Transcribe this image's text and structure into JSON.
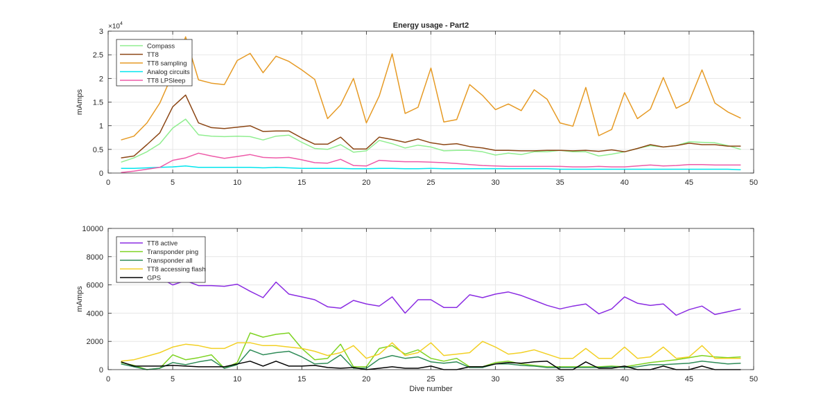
{
  "chart_data": [
    {
      "type": "line",
      "title": "Energy usage - Part2",
      "xlabel": "",
      "ylabel": "mAmps",
      "y_exponent_label": "×10",
      "y_exponent_power": "4",
      "xlim": [
        0,
        50
      ],
      "ylim": [
        0,
        30000
      ],
      "x_ticks": [
        0,
        5,
        10,
        15,
        20,
        25,
        30,
        35,
        40,
        45,
        50
      ],
      "x_tick_labels": [
        "0",
        "5",
        "10",
        "15",
        "20",
        "25",
        "30",
        "35",
        "40",
        "45",
        "50"
      ],
      "y_ticks": [
        0,
        5000,
        10000,
        15000,
        20000,
        25000,
        30000
      ],
      "y_tick_labels": [
        "0",
        "0.5",
        "1",
        "1.5",
        "2",
        "2.5",
        "3"
      ],
      "grid": true,
      "legend_position": "top-left",
      "x": [
        1,
        2,
        3,
        4,
        5,
        6,
        7,
        8,
        9,
        10,
        11,
        12,
        13,
        14,
        15,
        16,
        17,
        18,
        19,
        20,
        21,
        22,
        23,
        24,
        25,
        26,
        27,
        28,
        29,
        30,
        31,
        32,
        33,
        34,
        35,
        36,
        37,
        38,
        39,
        40,
        41,
        42,
        43,
        44,
        45,
        46,
        47,
        48,
        49
      ],
      "series": [
        {
          "name": "Compass",
          "color": "#90ee90",
          "values": [
            2300,
            3200,
            4500,
            6200,
            9500,
            11400,
            8100,
            7800,
            7700,
            7800,
            7700,
            7000,
            7800,
            8000,
            6500,
            5200,
            5000,
            6000,
            4400,
            4700,
            6900,
            6200,
            5300,
            5900,
            5500,
            4700,
            4800,
            4800,
            4500,
            3800,
            4200,
            3900,
            4500,
            4500,
            4800,
            4500,
            4500,
            3600,
            4000,
            4500,
            5200,
            5800,
            5500,
            5800,
            6600,
            6500,
            6400,
            5800,
            5000
          ]
        },
        {
          "name": "TT8",
          "color": "#8b4513",
          "values": [
            3200,
            3600,
            6000,
            8500,
            14000,
            16500,
            10600,
            9600,
            9400,
            9700,
            10000,
            8800,
            8900,
            8900,
            7400,
            6100,
            6100,
            7600,
            5100,
            5100,
            7600,
            7100,
            6500,
            7200,
            6400,
            6000,
            6200,
            5600,
            5300,
            4800,
            4800,
            4700,
            4700,
            4800,
            4800,
            4700,
            4800,
            4600,
            4900,
            4500,
            5200,
            6000,
            5500,
            5800,
            6300,
            6000,
            6000,
            5700,
            5700
          ]
        },
        {
          "name": "TT8 sampling",
          "color": "#e69a24",
          "values": [
            7000,
            7800,
            10600,
            14800,
            21000,
            28800,
            19700,
            19000,
            18700,
            23800,
            25300,
            21200,
            24700,
            23600,
            21800,
            19800,
            11500,
            14400,
            20000,
            10600,
            16300,
            25200,
            12600,
            13900,
            22200,
            10800,
            11300,
            18700,
            16400,
            13400,
            14600,
            13200,
            17600,
            15600,
            10600,
            9900,
            18100,
            7900,
            9200,
            17000,
            11500,
            13500,
            20200,
            13700,
            15100,
            21800,
            14800,
            12900,
            11600
          ]
        },
        {
          "name": "Analog circuits",
          "color": "#00e5ee",
          "values": [
            1000,
            1000,
            1100,
            1200,
            1300,
            1500,
            1200,
            1200,
            1200,
            1200,
            1200,
            1100,
            1200,
            1100,
            1000,
            1000,
            1000,
            1000,
            900,
            900,
            1000,
            1000,
            900,
            900,
            1000,
            900,
            900,
            900,
            900,
            900,
            900,
            900,
            900,
            900,
            800,
            800,
            800,
            800,
            800,
            800,
            800,
            800,
            800,
            800,
            800,
            800,
            800,
            800,
            700
          ]
        },
        {
          "name": "TT8 LPSleep",
          "color": "#ee5aa8",
          "values": [
            100,
            400,
            800,
            1200,
            2700,
            3200,
            4200,
            3600,
            3100,
            3500,
            3900,
            3300,
            3200,
            3300,
            2800,
            2200,
            2100,
            2900,
            1600,
            1500,
            2700,
            2500,
            2400,
            2400,
            2300,
            2200,
            2000,
            1800,
            1600,
            1500,
            1400,
            1400,
            1400,
            1400,
            1400,
            1300,
            1300,
            1400,
            1300,
            1300,
            1500,
            1700,
            1500,
            1600,
            1800,
            1800,
            1700,
            1700,
            1700
          ]
        }
      ]
    },
    {
      "type": "line",
      "title": "",
      "xlabel": "Dive number",
      "ylabel": "mAmps",
      "xlim": [
        0,
        50
      ],
      "ylim": [
        0,
        10000
      ],
      "x_ticks": [
        0,
        5,
        10,
        15,
        20,
        25,
        30,
        35,
        40,
        45,
        50
      ],
      "x_tick_labels": [
        "0",
        "5",
        "10",
        "15",
        "20",
        "25",
        "30",
        "35",
        "40",
        "45",
        "50"
      ],
      "y_ticks": [
        0,
        2000,
        4000,
        6000,
        8000,
        10000
      ],
      "y_tick_labels": [
        "0",
        "2000",
        "4000",
        "6000",
        "8000",
        "10000"
      ],
      "grid": true,
      "legend_position": "top-left",
      "x": [
        1,
        2,
        3,
        4,
        5,
        6,
        7,
        8,
        9,
        10,
        11,
        12,
        13,
        14,
        15,
        16,
        17,
        18,
        19,
        20,
        21,
        22,
        23,
        24,
        25,
        26,
        27,
        28,
        29,
        30,
        31,
        32,
        33,
        34,
        35,
        36,
        37,
        38,
        39,
        40,
        41,
        42,
        43,
        44,
        45,
        46,
        47,
        48,
        49
      ],
      "series": [
        {
          "name": "TT8 active",
          "color": "#8a2be2",
          "values": [
            6600,
            6700,
            6600,
            6500,
            6000,
            6300,
            5950,
            5950,
            5900,
            6050,
            5550,
            5100,
            6200,
            5350,
            5150,
            4950,
            4450,
            4350,
            4900,
            4650,
            4500,
            5150,
            4000,
            4950,
            4950,
            4400,
            4400,
            5300,
            5100,
            5350,
            5500,
            5250,
            4900,
            4550,
            4300,
            4500,
            4650,
            3950,
            4300,
            5150,
            4700,
            4550,
            4650,
            3850,
            4250,
            4500,
            3900,
            4100,
            4300
          ]
        },
        {
          "name": "Transponder ping",
          "color": "#7ed321",
          "values": [
            500,
            300,
            0,
            100,
            1050,
            700,
            850,
            1050,
            100,
            500,
            2600,
            2300,
            2500,
            2600,
            1500,
            700,
            800,
            1800,
            200,
            200,
            1500,
            1700,
            1100,
            1400,
            800,
            600,
            800,
            200,
            200,
            500,
            600,
            400,
            300,
            200,
            200,
            200,
            200,
            200,
            250,
            200,
            350,
            500,
            600,
            700,
            850,
            1000,
            900,
            850,
            900
          ]
        },
        {
          "name": "Transponder all",
          "color": "#2e8b57",
          "values": [
            400,
            200,
            0,
            100,
            500,
            350,
            550,
            700,
            100,
            350,
            1400,
            1050,
            1200,
            1300,
            900,
            400,
            450,
            1050,
            100,
            100,
            750,
            1000,
            800,
            900,
            550,
            450,
            550,
            150,
            150,
            400,
            400,
            300,
            250,
            150,
            150,
            150,
            150,
            150,
            200,
            150,
            200,
            350,
            350,
            400,
            450,
            600,
            500,
            400,
            450
          ]
        },
        {
          "name": "TT8 accessing flash",
          "color": "#f2d024",
          "values": [
            600,
            700,
            950,
            1200,
            1600,
            1800,
            1700,
            1500,
            1500,
            1900,
            1900,
            1700,
            1700,
            1600,
            1500,
            1300,
            1000,
            1200,
            1700,
            800,
            1100,
            1900,
            1000,
            1200,
            1900,
            1000,
            1100,
            1200,
            2000,
            1600,
            1100,
            1200,
            1400,
            1100,
            800,
            800,
            1500,
            800,
            800,
            1600,
            800,
            900,
            1600,
            800,
            900,
            1700,
            800,
            800,
            800
          ]
        },
        {
          "name": "GPS",
          "color": "#000000",
          "values": [
            550,
            250,
            250,
            250,
            300,
            250,
            200,
            200,
            200,
            400,
            600,
            250,
            600,
            250,
            250,
            300,
            150,
            100,
            150,
            0,
            100,
            200,
            100,
            100,
            250,
            0,
            0,
            200,
            200,
            400,
            500,
            450,
            550,
            600,
            0,
            0,
            550,
            100,
            100,
            250,
            0,
            0,
            250,
            0,
            0,
            250,
            0,
            0,
            0
          ]
        }
      ]
    }
  ]
}
